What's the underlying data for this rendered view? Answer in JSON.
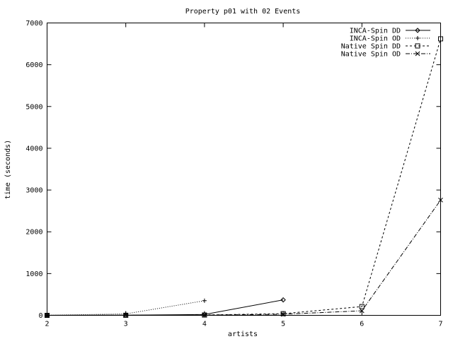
{
  "chart_data": {
    "type": "line",
    "title": "Property p01 with 02 Events",
    "xlabel": "artists",
    "ylabel": "time (seconds)",
    "xlim": [
      2,
      7
    ],
    "ylim": [
      0,
      7000
    ],
    "x_ticks": [
      "2",
      "3",
      "4",
      "5",
      "6",
      "7"
    ],
    "y_ticks": [
      "0",
      "1000",
      "2000",
      "3000",
      "4000",
      "5000",
      "6000",
      "7000"
    ],
    "grid": false,
    "legend_position": "top-right",
    "series": [
      {
        "name": "INCA-Spin DD",
        "color": "#000000",
        "dash": "none",
        "marker": "diamond",
        "points": [
          [
            2,
            1
          ],
          [
            3,
            5
          ],
          [
            4,
            20
          ],
          [
            5,
            370
          ]
        ]
      },
      {
        "name": "INCA-Spin OD",
        "color": "#000000",
        "dash": "1,2",
        "marker": "plus",
        "points": [
          [
            2,
            1
          ],
          [
            3,
            35
          ],
          [
            4,
            350
          ]
        ]
      },
      {
        "name": "Native Spin DD",
        "color": "#000000",
        "dash": "3,3",
        "marker": "square",
        "points": [
          [
            2,
            0
          ],
          [
            3,
            2
          ],
          [
            4,
            8
          ],
          [
            5,
            40
          ],
          [
            6,
            210
          ],
          [
            7,
            6620
          ]
        ]
      },
      {
        "name": "Native Spin OD",
        "color": "#000000",
        "dash": "6,2,1,2",
        "marker": "x",
        "points": [
          [
            2,
            0
          ],
          [
            3,
            1
          ],
          [
            4,
            5
          ],
          [
            5,
            25
          ],
          [
            6,
            110
          ],
          [
            7,
            2760
          ]
        ]
      }
    ]
  }
}
